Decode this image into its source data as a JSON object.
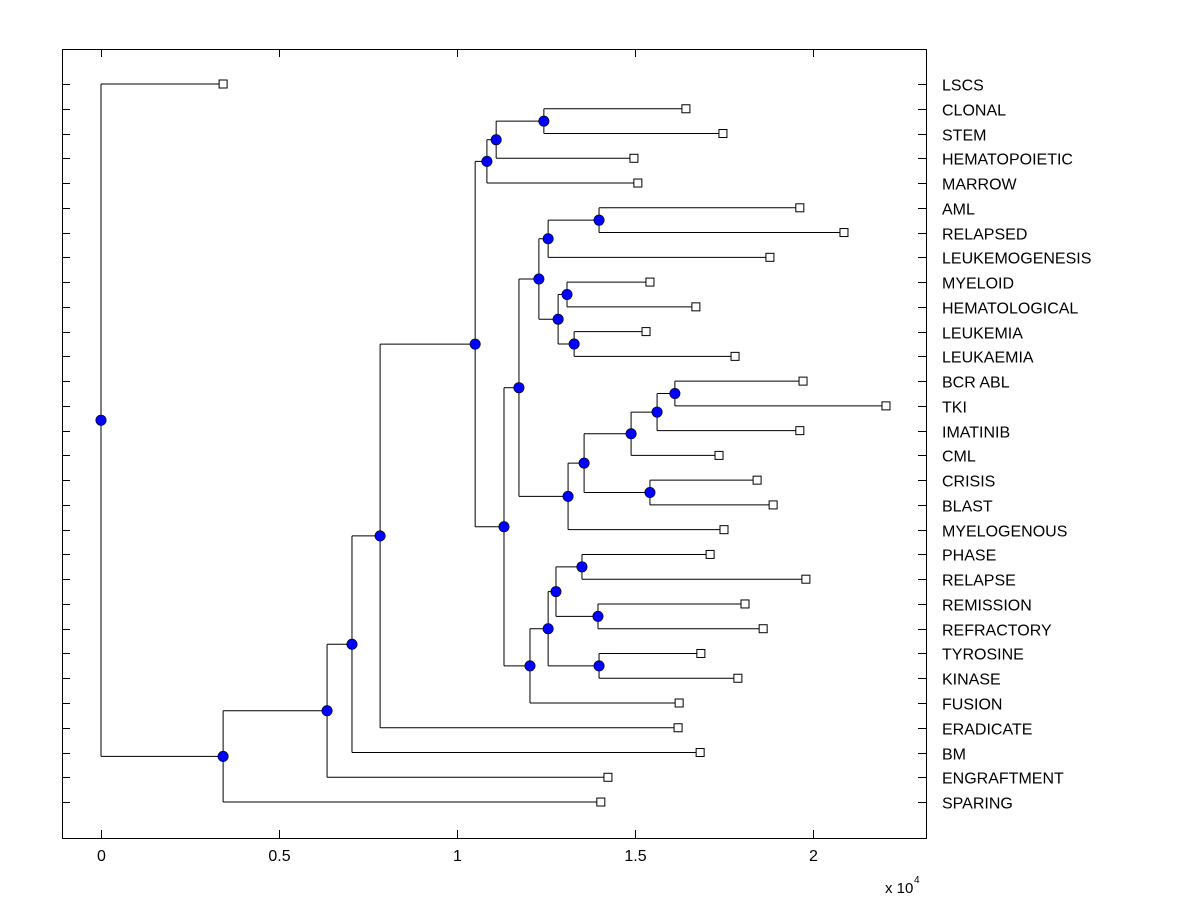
{
  "chart_data": {
    "type": "dendrogram",
    "title": "",
    "xlabel": "",
    "ylabel": "",
    "x_multiplier_label": "x 10",
    "x_multiplier_exponent": "4",
    "xlim": [
      -0.11,
      2.32
    ],
    "xticks": [
      0,
      0.5,
      1,
      1.5,
      2
    ],
    "xtick_labels": [
      "0",
      "0.5",
      "1",
      "1.5",
      "2"
    ],
    "grid": false,
    "colors": {
      "node": "#0000ff",
      "leaf": "#ffffff",
      "line": "#000000"
    },
    "leaves": [
      {
        "label": "LSCS",
        "x": 0.343
      },
      {
        "label": "CLONAL",
        "x": 1.643
      },
      {
        "label": "STEM",
        "x": 1.747
      },
      {
        "label": "HEMATOPOIETIC",
        "x": 1.497
      },
      {
        "label": "MARROW",
        "x": 1.508
      },
      {
        "label": "AML",
        "x": 1.963
      },
      {
        "label": "RELAPSED",
        "x": 2.087
      },
      {
        "label": "LEUKEMOGENESIS",
        "x": 1.879
      },
      {
        "label": "MYELOID",
        "x": 1.542
      },
      {
        "label": "HEMATOLOGICAL",
        "x": 1.671
      },
      {
        "label": "LEUKEMIA",
        "x": 1.531
      },
      {
        "label": "LEUKAEMIA",
        "x": 1.781
      },
      {
        "label": "BCR ABL",
        "x": 1.972
      },
      {
        "label": "TKI",
        "x": 2.205
      },
      {
        "label": "IMATINIB",
        "x": 1.963
      },
      {
        "label": "CML",
        "x": 1.736
      },
      {
        "label": "CRISIS",
        "x": 1.843
      },
      {
        "label": "BLAST",
        "x": 1.888
      },
      {
        "label": "MYELOGENOUS",
        "x": 1.75
      },
      {
        "label": "PHASE",
        "x": 1.711
      },
      {
        "label": "RELAPSE",
        "x": 1.98
      },
      {
        "label": "REMISSION",
        "x": 1.809
      },
      {
        "label": "REFRACTORY",
        "x": 1.86
      },
      {
        "label": "TYROSINE",
        "x": 1.685
      },
      {
        "label": "KINASE",
        "x": 1.789
      },
      {
        "label": "FUSION",
        "x": 1.624
      },
      {
        "label": "ERADICATE",
        "x": 1.621
      },
      {
        "label": "BM",
        "x": 1.683
      },
      {
        "label": "ENGRAFTMENT",
        "x": 1.424
      },
      {
        "label": "SPARING",
        "x": 1.404
      }
    ],
    "tree": {
      "x": 0,
      "children": [
        {
          "leaf": "LSCS"
        },
        {
          "x": 0.343,
          "children": [
            {
              "x": 0.635,
              "children": [
                {
                  "x": 0.705,
                  "children": [
                    {
                      "x": 0.784,
                      "children": [
                        {
                          "x": 1.051,
                          "children": [
                            {
                              "x": 1.084,
                              "children": [
                                {
                                  "x": 1.11,
                                  "children": [
                                    {
                                      "x": 1.244,
                                      "children": [
                                        {
                                          "leaf": "CLONAL"
                                        },
                                        {
                                          "leaf": "STEM"
                                        }
                                      ]
                                    },
                                    {
                                      "leaf": "HEMATOPOIETIC"
                                    }
                                  ]
                                },
                                {
                                  "leaf": "MARROW"
                                }
                              ]
                            },
                            {
                              "x": 1.132,
                              "children": [
                                {
                                  "x": 1.174,
                                  "children": [
                                    {
                                      "x": 1.23,
                                      "children": [
                                        {
                                          "x": 1.256,
                                          "children": [
                                            {
                                              "x": 1.399,
                                              "children": [
                                                {
                                                  "leaf": "AML"
                                                },
                                                {
                                                  "leaf": "RELAPSED"
                                                }
                                              ]
                                            },
                                            {
                                              "leaf": "LEUKEMOGENESIS"
                                            }
                                          ]
                                        },
                                        {
                                          "x": 1.284,
                                          "children": [
                                            {
                                              "x": 1.309,
                                              "children": [
                                                {
                                                  "leaf": "MYELOID"
                                                },
                                                {
                                                  "leaf": "HEMATOLOGICAL"
                                                }
                                              ]
                                            },
                                            {
                                              "x": 1.329,
                                              "children": [
                                                {
                                                  "leaf": "LEUKEMIA"
                                                },
                                                {
                                                  "leaf": "LEUKAEMIA"
                                                }
                                              ]
                                            }
                                          ]
                                        }
                                      ]
                                    },
                                    {
                                      "x": 1.312,
                                      "children": [
                                        {
                                          "x": 1.357,
                                          "children": [
                                            {
                                              "x": 1.489,
                                              "children": [
                                                {
                                                  "x": 1.562,
                                                  "children": [
                                                    {
                                                      "x": 1.612,
                                                      "children": [
                                                        {
                                                          "leaf": "BCR ABL"
                                                        },
                                                        {
                                                          "leaf": "TKI"
                                                        }
                                                      ]
                                                    },
                                                    {
                                                      "leaf": "IMATINIB"
                                                    }
                                                  ]
                                                },
                                                {
                                                  "leaf": "CML"
                                                }
                                              ]
                                            },
                                            {
                                              "x": 1.542,
                                              "children": [
                                                {
                                                  "leaf": "CRISIS"
                                                },
                                                {
                                                  "leaf": "BLAST"
                                                }
                                              ]
                                            }
                                          ]
                                        },
                                        {
                                          "leaf": "MYELOGENOUS"
                                        }
                                      ]
                                    }
                                  ]
                                },
                                {
                                  "x": 1.205,
                                  "children": [
                                    {
                                      "x": 1.256,
                                      "children": [
                                        {
                                          "x": 1.278,
                                          "children": [
                                            {
                                              "x": 1.351,
                                              "children": [
                                                {
                                                  "leaf": "PHASE"
                                                },
                                                {
                                                  "leaf": "RELAPSE"
                                                }
                                              ]
                                            },
                                            {
                                              "x": 1.396,
                                              "children": [
                                                {
                                                  "leaf": "REMISSION"
                                                },
                                                {
                                                  "leaf": "REFRACTORY"
                                                }
                                              ]
                                            }
                                          ]
                                        },
                                        {
                                          "x": 1.399,
                                          "children": [
                                            {
                                              "leaf": "TYROSINE"
                                            },
                                            {
                                              "leaf": "KINASE"
                                            }
                                          ]
                                        }
                                      ]
                                    },
                                    {
                                      "leaf": "FUSION"
                                    }
                                  ]
                                }
                              ]
                            }
                          ]
                        },
                        {
                          "leaf": "ERADICATE"
                        }
                      ]
                    },
                    {
                      "leaf": "BM"
                    }
                  ]
                },
                {
                  "leaf": "ENGRAFTMENT"
                }
              ]
            },
            {
              "leaf": "SPARING"
            }
          ]
        }
      ]
    }
  }
}
